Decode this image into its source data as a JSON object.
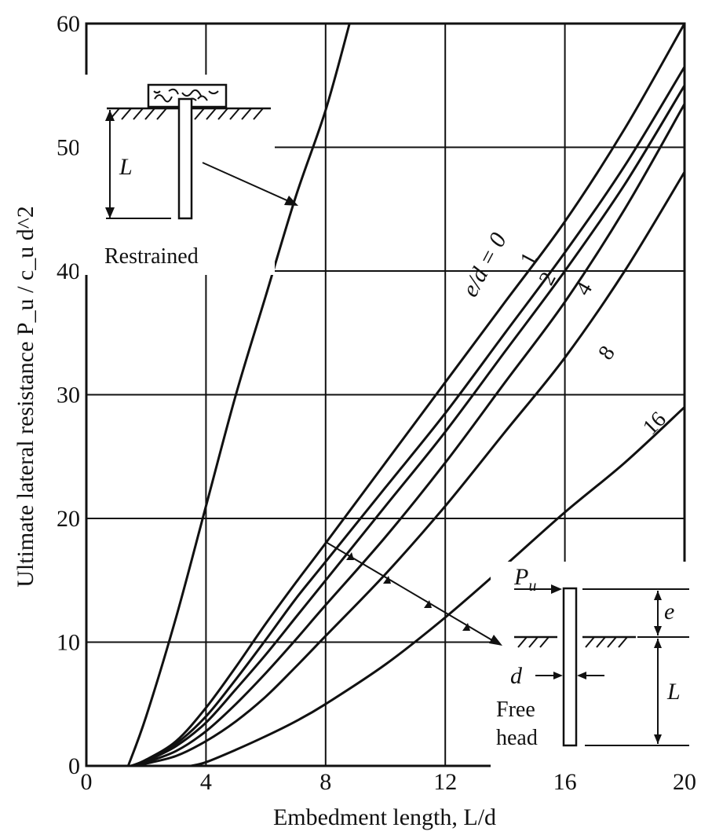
{
  "chart_data": {
    "type": "line",
    "title": "",
    "xlabel": "Embedment length, L/d",
    "ylabel": "Ultimate lateral resistance P_u / c_u d^2",
    "xlim": [
      0,
      20
    ],
    "ylim": [
      0,
      60
    ],
    "x_ticks": [
      "0",
      "4",
      "8",
      "12",
      "16",
      "20"
    ],
    "y_ticks": [
      "0",
      "10",
      "20",
      "30",
      "40",
      "50",
      "60"
    ],
    "grid": true,
    "legend": "none",
    "series": [
      {
        "name": "Restrained",
        "x": [
          1.4,
          2,
          3,
          4,
          5,
          6,
          7,
          8,
          8.8
        ],
        "y": [
          0,
          4,
          12,
          21,
          30,
          38,
          46,
          53,
          60
        ]
      },
      {
        "name": "e/d = 0",
        "x": [
          1.5,
          2,
          3,
          4,
          5,
          6,
          7,
          8,
          10,
          12,
          14,
          16,
          18,
          20
        ],
        "y": [
          0,
          0.5,
          2,
          4.7,
          8,
          11.5,
          14.8,
          18,
          24.5,
          31,
          37.5,
          44,
          51.5,
          60
        ]
      },
      {
        "name": "1",
        "x": [
          1.5,
          2,
          3,
          4,
          5,
          6,
          7,
          8,
          10,
          12,
          14,
          16,
          18,
          20
        ],
        "y": [
          0,
          0.45,
          1.8,
          4,
          7,
          10.2,
          13.5,
          16.5,
          22.5,
          28.5,
          35,
          41.5,
          48.5,
          56.5
        ]
      },
      {
        "name": "2",
        "x": [
          1.5,
          2,
          3,
          4,
          5,
          6,
          7,
          8,
          10,
          12,
          14,
          16,
          18,
          20
        ],
        "y": [
          0,
          0.4,
          1.6,
          3.5,
          6.2,
          9,
          12,
          15,
          21,
          27,
          33.5,
          40,
          47,
          55
        ]
      },
      {
        "name": "4",
        "x": [
          1.5,
          2,
          3,
          4,
          5,
          6,
          7,
          8,
          10,
          12,
          14,
          16,
          18,
          20
        ],
        "y": [
          0,
          0.3,
          1.2,
          2.8,
          5,
          7.5,
          10.2,
          13,
          18.5,
          24.5,
          31,
          37.5,
          45,
          53.5
        ]
      },
      {
        "name": "8",
        "x": [
          1.5,
          2,
          3,
          4,
          5,
          6,
          7,
          8,
          10,
          12,
          14,
          16,
          18,
          20
        ],
        "y": [
          0,
          0.2,
          0.8,
          2,
          3.6,
          5.6,
          8,
          10.5,
          15.5,
          21,
          27,
          33,
          40,
          48
        ]
      },
      {
        "name": "16",
        "x": [
          3.5,
          4,
          5,
          6,
          7,
          8,
          10,
          12,
          14,
          16,
          18,
          20
        ],
        "y": [
          0,
          0.3,
          1.3,
          2.4,
          3.6,
          5,
          8.2,
          12,
          16.2,
          20.5,
          24.5,
          29
        ]
      }
    ],
    "annotations": {
      "curve_labels": [
        "e/d = 0",
        "1",
        "2",
        "4",
        "8",
        "16"
      ],
      "restrained_inset": {
        "caption": "Restrained",
        "length_symbol": "L"
      },
      "free_head_inset": {
        "caption_line1": "Free",
        "caption_line2": "head",
        "load_symbol": "P",
        "load_subscript": "u",
        "eccentricity_symbol": "e",
        "diameter_symbol": "d",
        "length_symbol": "L"
      }
    }
  }
}
